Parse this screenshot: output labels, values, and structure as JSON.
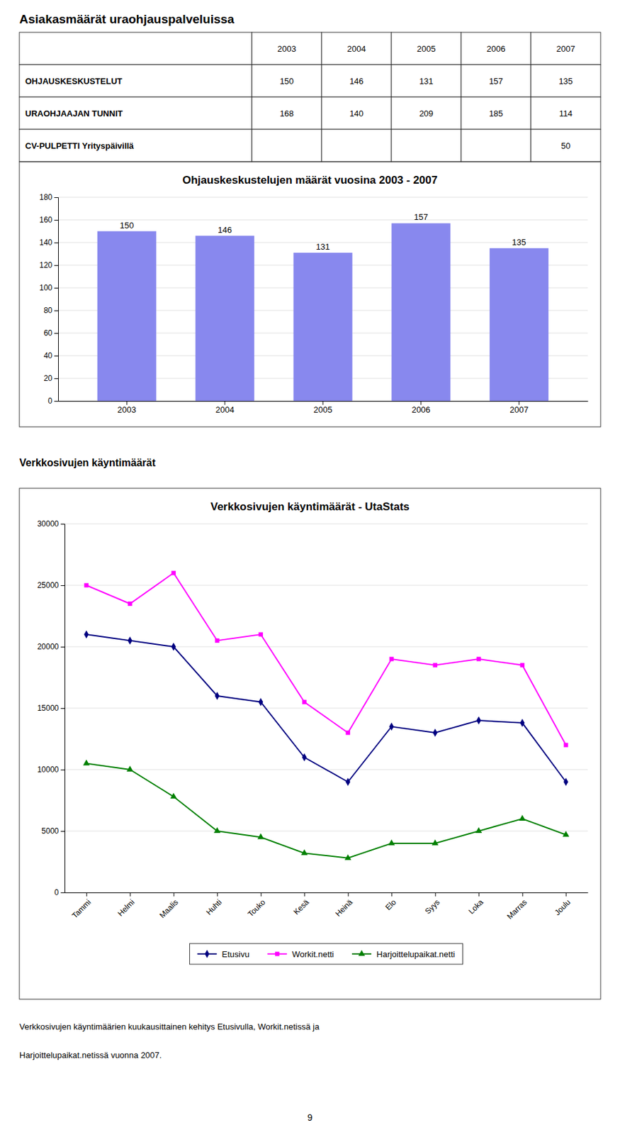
{
  "page_title": "Asiakasmäärät uraohjauspalveluissa",
  "table": {
    "columns": [
      "2003",
      "2004",
      "2005",
      "2006",
      "2007"
    ],
    "rows": [
      {
        "label": "OHJAUSKESKUSTELUT",
        "values": [
          150,
          146,
          131,
          157,
          135
        ]
      },
      {
        "label": "URAOHJAAJAN TUNNIT",
        "values": [
          168,
          140,
          209,
          185,
          114
        ]
      },
      {
        "label": "CV-PULPETTI Yrityspäivillä",
        "values": [
          null,
          null,
          null,
          null,
          50
        ]
      }
    ]
  },
  "chart_data": [
    {
      "type": "bar",
      "title": "Ohjauskeskustelujen määrät vuosina 2003 - 2007",
      "categories": [
        "2003",
        "2004",
        "2005",
        "2006",
        "2007"
      ],
      "values": [
        150,
        146,
        131,
        157,
        135
      ],
      "color": "#8888ee",
      "ylim": [
        0,
        180
      ],
      "yticks": [
        0,
        20,
        40,
        60,
        80,
        100,
        120,
        140,
        160,
        180
      ],
      "grid": true,
      "data_labels": true
    },
    {
      "type": "line",
      "title": "Verkkosivujen käyntimäärät - UtaStats",
      "categories": [
        "Tammi",
        "Helmi",
        "Maalis",
        "Huhti",
        "Touko",
        "Kesä",
        "Heinä",
        "Elo",
        "Syys",
        "Loka",
        "Marras",
        "Joulu"
      ],
      "series": [
        {
          "name": "Etusivu",
          "color": "#000080",
          "marker": "diamond",
          "values": [
            21000,
            20500,
            20000,
            16000,
            15500,
            11000,
            9000,
            13500,
            13000,
            14000,
            13800,
            9000
          ]
        },
        {
          "name": "Workit.netti",
          "color": "#ff00ff",
          "marker": "square",
          "values": [
            25000,
            23500,
            26000,
            20500,
            21000,
            15500,
            13000,
            19000,
            18500,
            19000,
            18500,
            12000
          ]
        },
        {
          "name": "Harjoittelupaikat.netti",
          "color": "#008000",
          "marker": "triangle",
          "values": [
            10500,
            10000,
            7800,
            5000,
            4500,
            3200,
            2800,
            4000,
            4000,
            5000,
            6000,
            4700
          ]
        }
      ],
      "ylim": [
        0,
        30000
      ],
      "yticks": [
        0,
        5000,
        10000,
        15000,
        20000,
        25000,
        30000
      ],
      "grid": true,
      "legend": "bottom"
    }
  ],
  "section_label": "Verkkosivujen käyntimäärät",
  "footer": [
    "Verkkosivujen käyntimäärien kuukausittainen kehitys Etusivulla, Workit.netissä ja",
    "Harjoittelupaikat.netissä vuonna 2007."
  ],
  "page_number": "9"
}
